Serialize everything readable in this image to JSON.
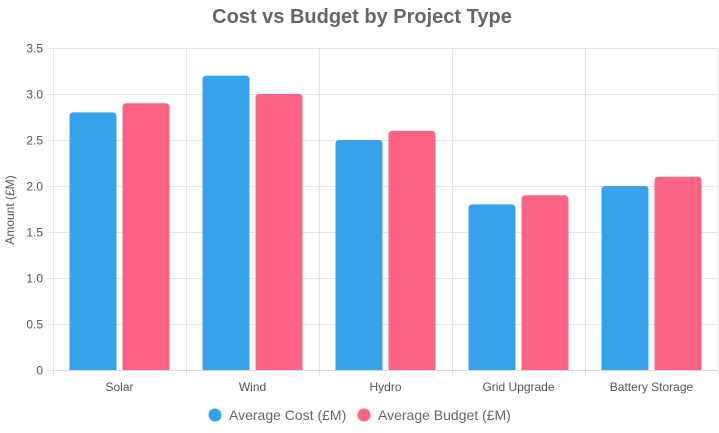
{
  "chart_data": {
    "type": "bar",
    "title": "Cost vs Budget by Project Type",
    "xlabel": "",
    "ylabel": "Amount (£M)",
    "categories": [
      "Solar",
      "Wind",
      "Hydro",
      "Grid Upgrade",
      "Battery Storage"
    ],
    "series": [
      {
        "name": "Average Cost (£M)",
        "color": "#36a2eb",
        "values": [
          2.8,
          3.2,
          2.5,
          1.8,
          2.0
        ]
      },
      {
        "name": "Average Budget (£M)",
        "color": "#ff6384",
        "values": [
          2.9,
          3.0,
          2.6,
          1.9,
          2.1
        ]
      }
    ],
    "ylim": [
      0,
      3.5
    ],
    "yticks": [
      "0",
      "0.5",
      "1.0",
      "1.5",
      "2.0",
      "2.5",
      "3.0",
      "3.5"
    ],
    "grid": true,
    "legend": "bottom"
  }
}
